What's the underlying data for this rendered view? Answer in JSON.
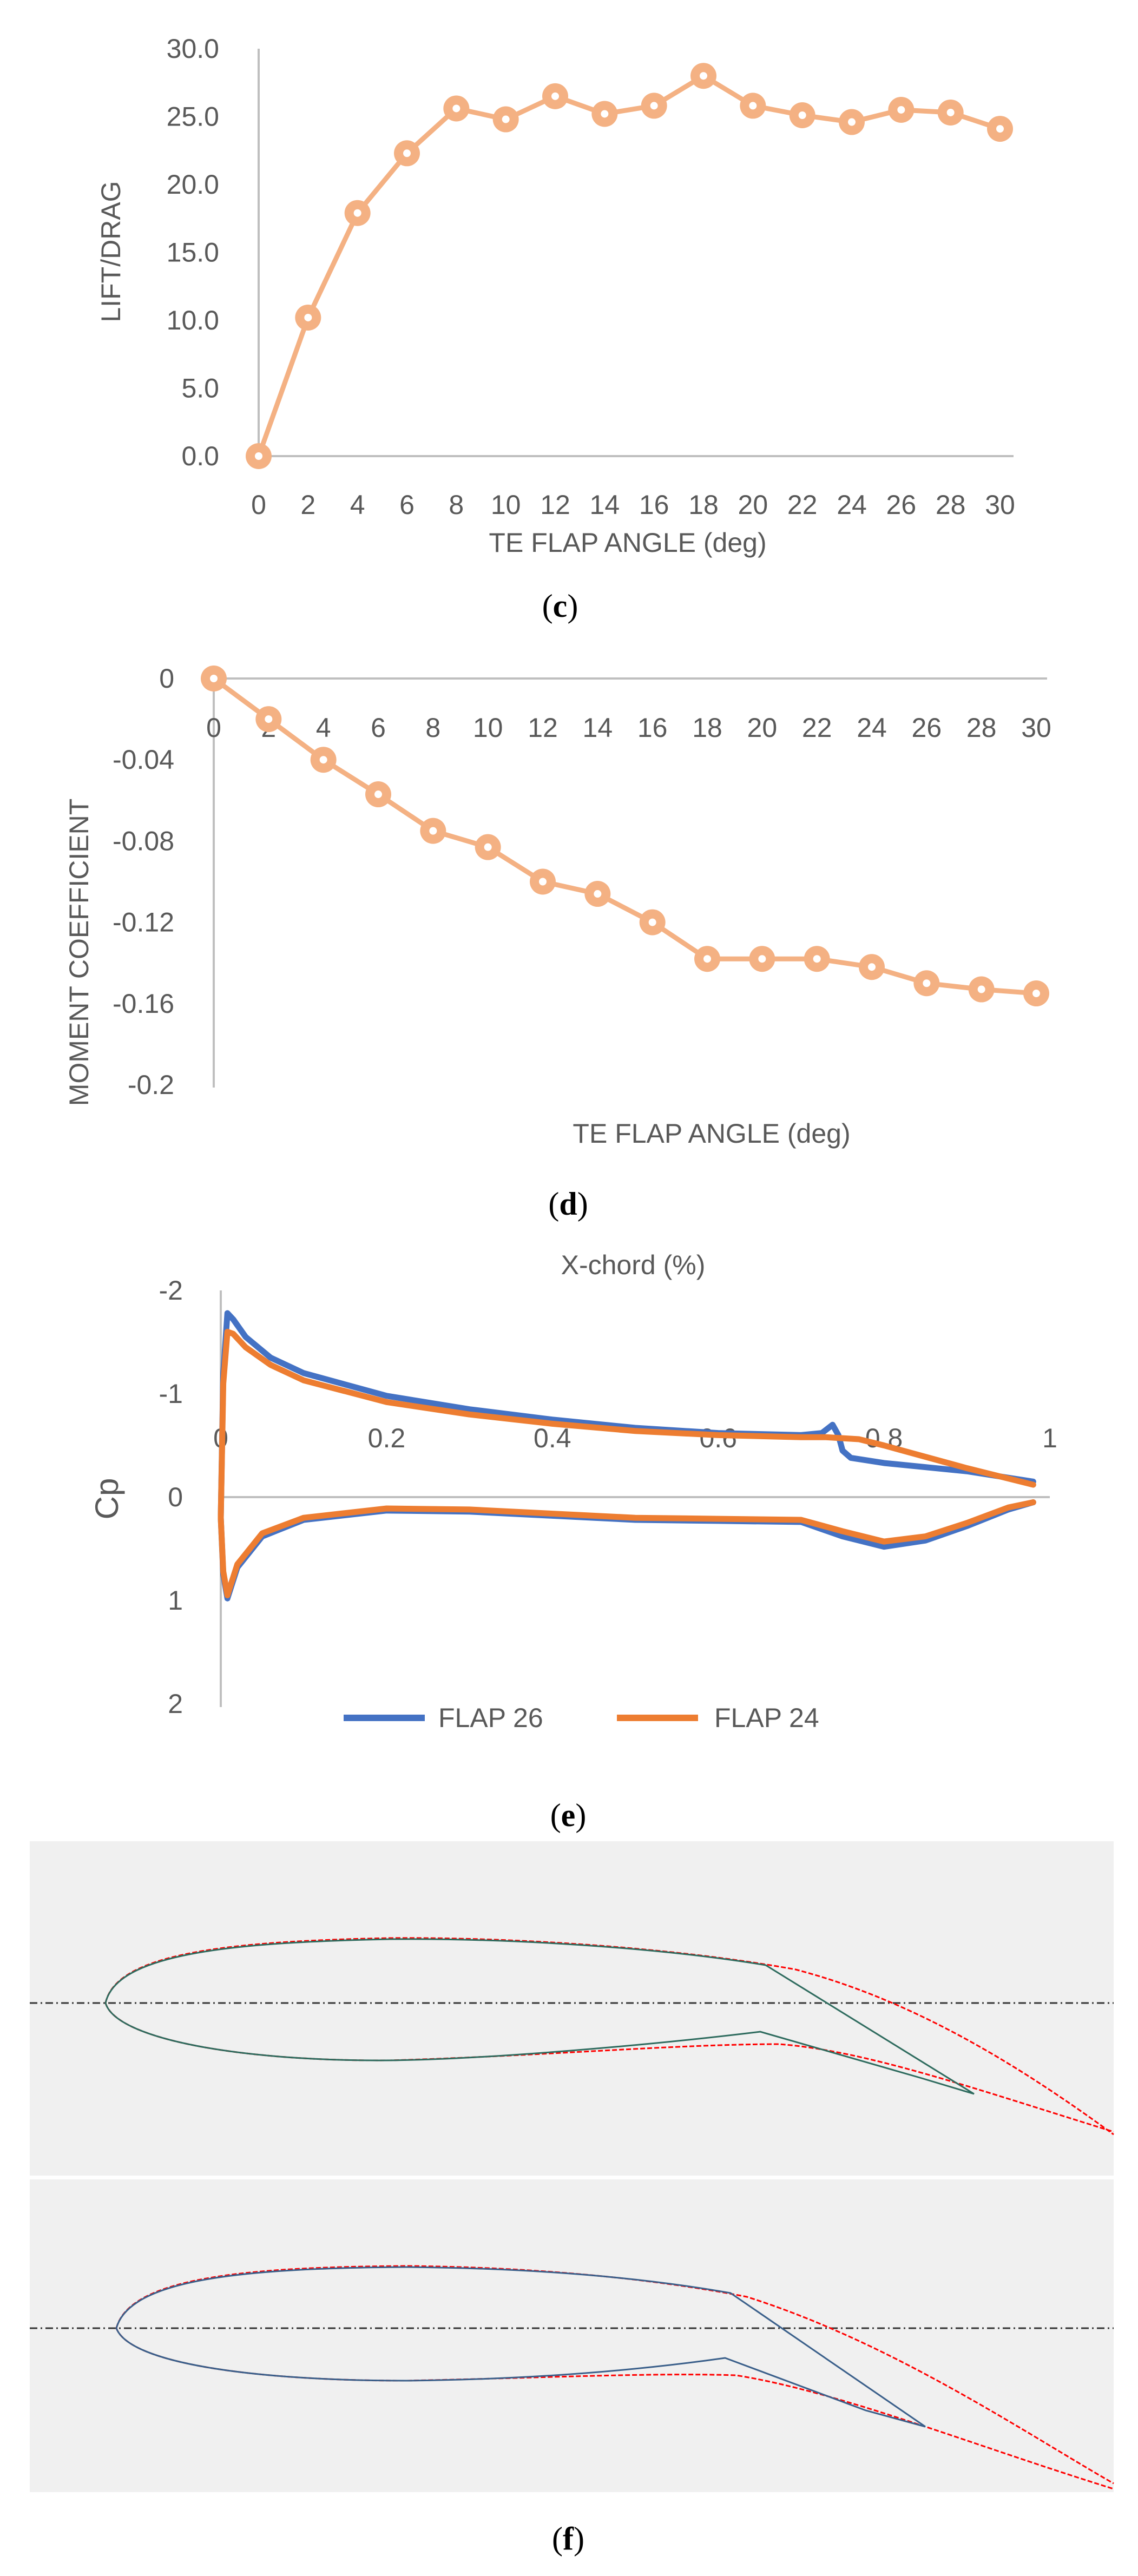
{
  "colors": {
    "orange_marker": "#F4B183",
    "orange_line": "#ED7D31",
    "blue_line": "#4472C4",
    "axis": "#BFBFBF",
    "tick_text": "#595959",
    "panel_bg": "#F0F0F0",
    "profile_red": "#FF0000",
    "profile_green": "#2E6B5E",
    "profile_blue": "#3A5F8A",
    "chord_line": "#333333"
  },
  "chart_data": [
    {
      "id": "c",
      "type": "line",
      "caption_letter": "c",
      "xlabel": "TE FLAP ANGLE (deg)",
      "ylabel": "LIFT/DRAG",
      "x": [
        0,
        2,
        4,
        6,
        8,
        10,
        12,
        14,
        16,
        18,
        20,
        22,
        24,
        26,
        28,
        30
      ],
      "values": [
        0.0,
        10.2,
        17.9,
        22.3,
        25.6,
        24.8,
        26.5,
        25.2,
        25.8,
        28.0,
        25.8,
        25.1,
        24.6,
        25.5,
        25.3,
        24.1
      ],
      "xlim": [
        0,
        30
      ],
      "ylim": [
        0,
        30
      ],
      "yticks": [
        "0.0",
        "5.0",
        "10.0",
        "15.0",
        "20.0",
        "25.0",
        "30.0"
      ],
      "xticks": [
        "0",
        "2",
        "4",
        "6",
        "8",
        "10",
        "12",
        "14",
        "16",
        "18",
        "20",
        "22",
        "24",
        "26",
        "28",
        "30"
      ]
    },
    {
      "id": "d",
      "type": "line",
      "caption_letter": "d",
      "xlabel": "TE FLAP ANGLE (deg)",
      "ylabel": "MOMENT COEFFICIENT",
      "x": [
        0,
        2,
        4,
        6,
        8,
        10,
        12,
        14,
        16,
        18,
        20,
        22,
        24,
        26,
        28,
        30
      ],
      "values": [
        0.0,
        -0.02,
        -0.04,
        -0.057,
        -0.075,
        -0.083,
        -0.1,
        -0.106,
        -0.12,
        -0.138,
        -0.138,
        -0.138,
        -0.142,
        -0.15,
        -0.153,
        -0.155
      ],
      "xlim": [
        0,
        30
      ],
      "ylim": [
        -0.2,
        0
      ],
      "yticks": [
        "0",
        "-0.04",
        "-0.08",
        "-0.12",
        "-0.16",
        "-0.2"
      ],
      "xticks": [
        "0",
        "2",
        "4",
        "6",
        "8",
        "10",
        "12",
        "14",
        "16",
        "18",
        "20",
        "22",
        "24",
        "26",
        "28",
        "30"
      ]
    },
    {
      "id": "e",
      "type": "line",
      "caption_letter": "e",
      "title": "X-chord (%)",
      "ylabel": "Cp",
      "y_inverted": true,
      "xlim": [
        0,
        1
      ],
      "ylim": [
        -2,
        2
      ],
      "xticks": [
        "0",
        "0.2",
        "0.4",
        "0.6",
        "0.8",
        "1"
      ],
      "yticks": [
        "-2",
        "-1",
        "0",
        "1",
        "2"
      ],
      "legend": [
        "FLAP 26",
        "FLAP 24"
      ],
      "series": [
        {
          "name": "FLAP 26",
          "upper": {
            "x": [
              0.0,
              0.003,
              0.008,
              0.015,
              0.03,
              0.06,
              0.1,
              0.2,
              0.3,
              0.4,
              0.5,
              0.6,
              0.7,
              0.725,
              0.738,
              0.745,
              0.75,
              0.76,
              0.8,
              0.9,
              0.98
            ],
            "y": [
              0.2,
              -1.2,
              -1.78,
              -1.72,
              -1.55,
              -1.35,
              -1.2,
              -0.98,
              -0.85,
              -0.75,
              -0.67,
              -0.62,
              -0.6,
              -0.62,
              -0.7,
              -0.6,
              -0.45,
              -0.38,
              -0.33,
              -0.25,
              -0.15
            ]
          },
          "lower": {
            "x": [
              0.0,
              0.003,
              0.008,
              0.02,
              0.05,
              0.1,
              0.2,
              0.3,
              0.4,
              0.5,
              0.6,
              0.7,
              0.75,
              0.8,
              0.85,
              0.9,
              0.95,
              0.98
            ],
            "y": [
              0.2,
              0.75,
              0.98,
              0.68,
              0.38,
              0.22,
              0.13,
              0.14,
              0.18,
              0.22,
              0.23,
              0.24,
              0.38,
              0.48,
              0.42,
              0.28,
              0.12,
              0.05
            ]
          }
        },
        {
          "name": "FLAP 24",
          "upper": {
            "x": [
              0.0,
              0.003,
              0.008,
              0.015,
              0.03,
              0.06,
              0.1,
              0.2,
              0.3,
              0.4,
              0.5,
              0.6,
              0.7,
              0.73,
              0.75,
              0.77,
              0.8,
              0.9,
              0.98
            ],
            "y": [
              0.2,
              -1.1,
              -1.6,
              -1.58,
              -1.45,
              -1.28,
              -1.13,
              -0.92,
              -0.8,
              -0.71,
              -0.64,
              -0.6,
              -0.58,
              -0.58,
              -0.57,
              -0.56,
              -0.5,
              -0.28,
              -0.12
            ]
          },
          "lower": {
            "x": [
              0.0,
              0.003,
              0.008,
              0.02,
              0.05,
              0.1,
              0.2,
              0.3,
              0.4,
              0.5,
              0.6,
              0.7,
              0.75,
              0.8,
              0.85,
              0.9,
              0.95,
              0.98
            ],
            "y": [
              0.2,
              0.72,
              0.95,
              0.65,
              0.35,
              0.2,
              0.11,
              0.12,
              0.16,
              0.2,
              0.21,
              0.22,
              0.33,
              0.43,
              0.38,
              0.25,
              0.1,
              0.05
            ]
          }
        }
      ]
    }
  ],
  "captions": {
    "c_open": "(",
    "c_letter": "c",
    "c_close": ")",
    "d_open": "(",
    "d_letter": "d",
    "d_close": ")",
    "e_open": "(",
    "e_letter": "e",
    "e_close": ")",
    "f_open": "(",
    "f_letter": "f",
    "f_close": ")"
  }
}
